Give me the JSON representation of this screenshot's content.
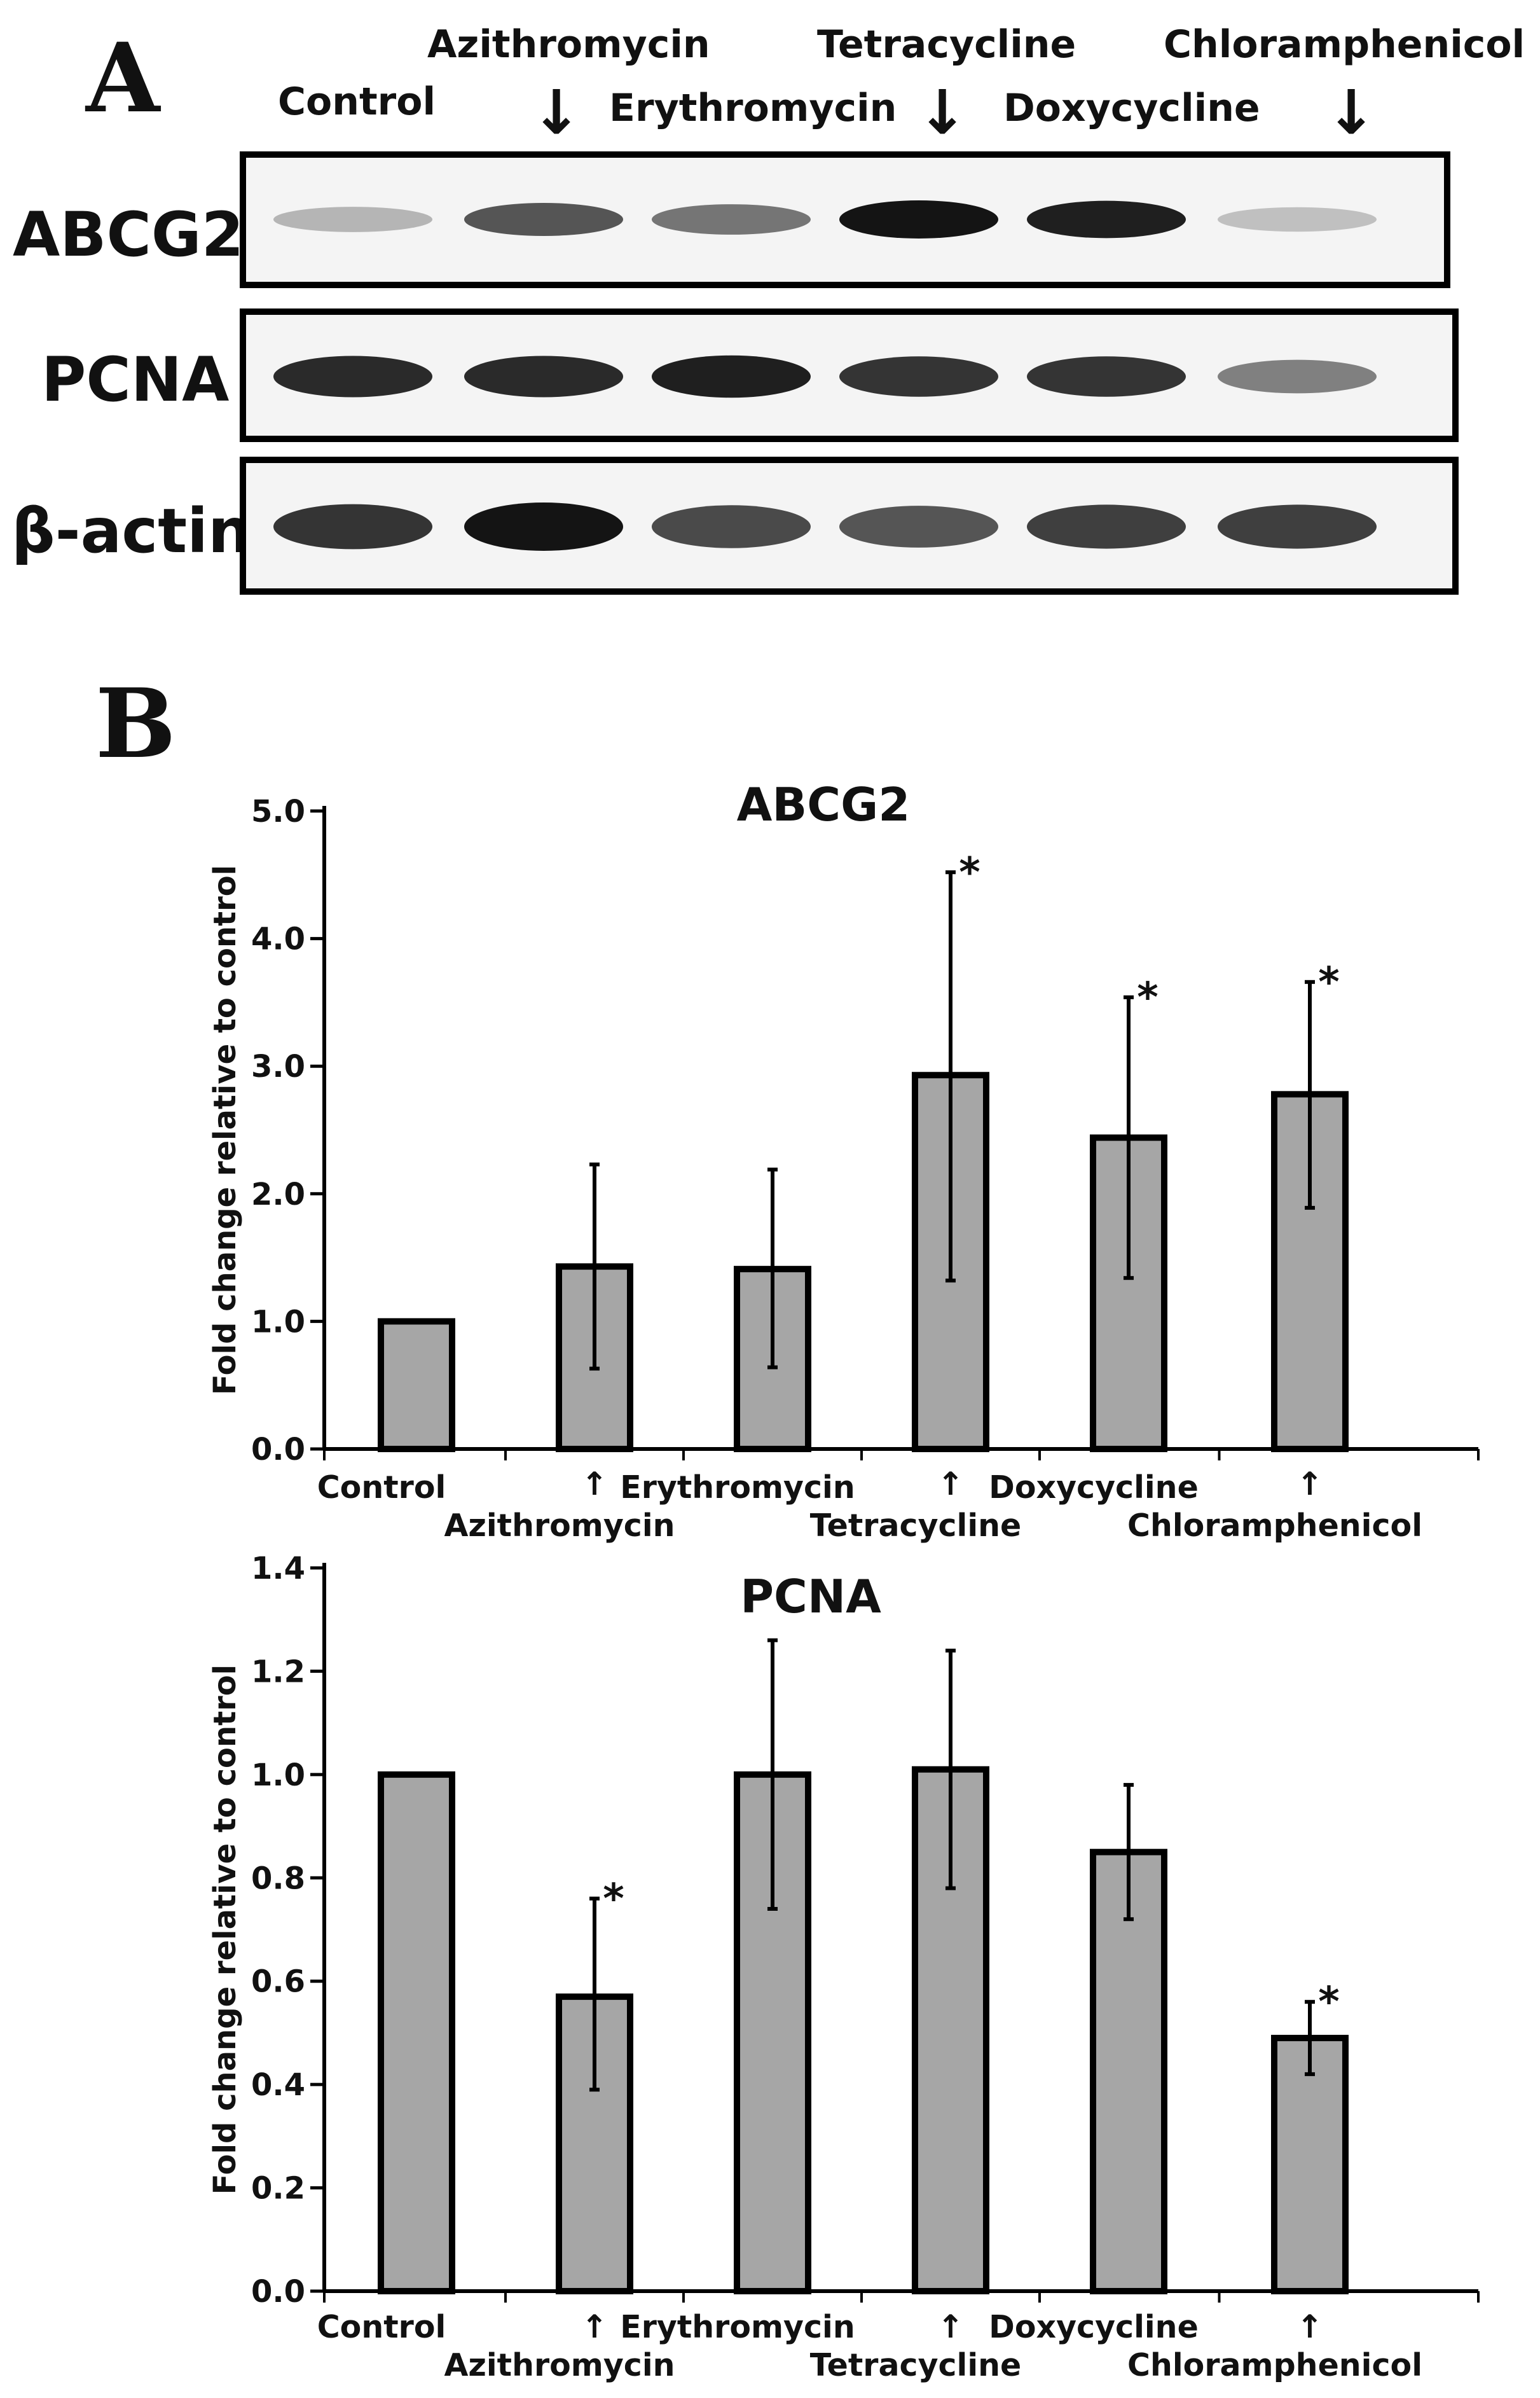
{
  "panel_a": {
    "letter": "A",
    "lane_labels": [
      "Control",
      "Azithromycin",
      "Erythromycin",
      "Tetracycline",
      "Doxycycline",
      "Chloramphenicol"
    ],
    "arrow_glyph": "↓",
    "rows": [
      {
        "label": "ABCG2",
        "band_intensity": [
          0.25,
          0.7,
          0.55,
          1.0,
          0.95,
          0.2
        ]
      },
      {
        "label": "PCNA",
        "band_intensity": [
          0.9,
          0.9,
          0.95,
          0.85,
          0.85,
          0.5
        ]
      },
      {
        "label": "β-actin",
        "band_intensity": [
          0.85,
          1.0,
          0.75,
          0.7,
          0.8,
          0.8
        ]
      }
    ]
  },
  "panel_b": {
    "letter": "B",
    "arrow_glyph": "↑"
  },
  "colors": {
    "bar_fill": "#a6a6a6",
    "ink": "#111111",
    "band": "#1a1a1a"
  },
  "chart_data": [
    {
      "type": "bar",
      "title": "ABCG2",
      "ylabel": "Fold change relative to control",
      "categories": [
        "Control",
        "Azithromycin",
        "Erythromycin",
        "Tetracycline",
        "Doxycycline",
        "Chloramphenicol"
      ],
      "values": [
        1.0,
        1.43,
        1.41,
        2.93,
        2.44,
        2.78
      ],
      "error_high": [
        1.0,
        2.23,
        2.19,
        4.52,
        3.54,
        3.66
      ],
      "error_low": [
        1.0,
        0.63,
        0.64,
        1.32,
        1.34,
        1.89
      ],
      "significant": [
        false,
        false,
        false,
        true,
        true,
        true
      ],
      "significance_marker": "*",
      "ylim": [
        0,
        5
      ],
      "yticks": [
        "0.0",
        "1.0",
        "2.0",
        "3.0",
        "4.0",
        "5.0"
      ]
    },
    {
      "type": "bar",
      "title": "PCNA",
      "ylabel": "Fold change relative to control",
      "categories": [
        "Control",
        "Azithromycin",
        "Erythromycin",
        "Tetracycline",
        "Doxycycline",
        "Chloramphenicol"
      ],
      "values": [
        1.0,
        0.57,
        1.0,
        1.01,
        0.85,
        0.49
      ],
      "error_high": [
        1.0,
        0.76,
        1.26,
        1.24,
        0.98,
        0.56
      ],
      "error_low": [
        1.0,
        0.39,
        0.74,
        0.78,
        0.72,
        0.42
      ],
      "significant": [
        false,
        true,
        false,
        false,
        false,
        true
      ],
      "significance_marker": "*",
      "ylim": [
        0,
        1.4
      ],
      "yticks": [
        "0.0",
        "0.2",
        "0.4",
        "0.6",
        "0.8",
        "1.0",
        "1.2",
        "1.4"
      ]
    }
  ]
}
